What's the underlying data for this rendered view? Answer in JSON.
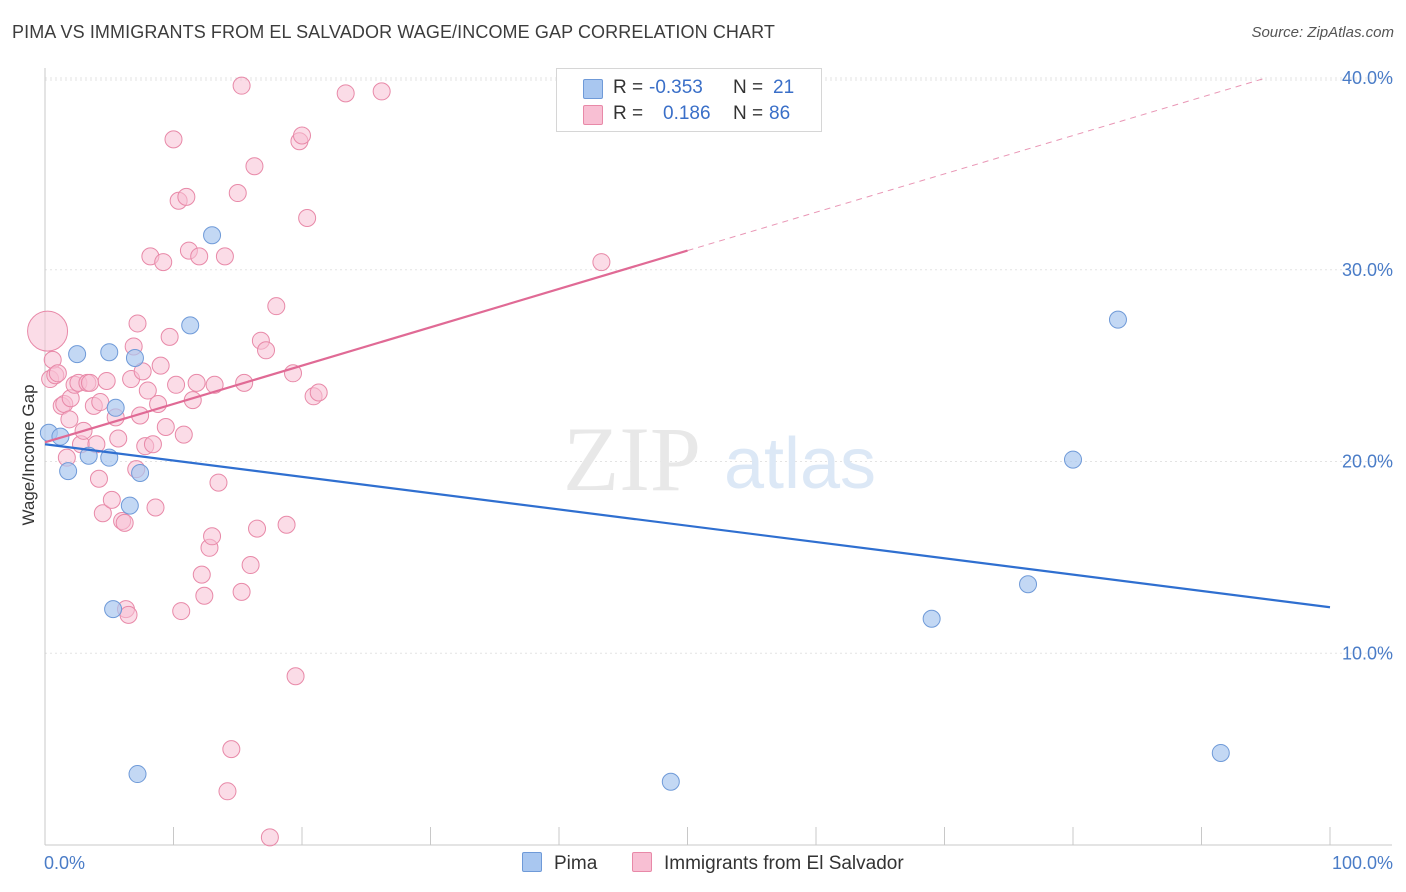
{
  "header": {
    "title": "PIMA VS IMMIGRANTS FROM EL SALVADOR WAGE/INCOME GAP CORRELATION CHART",
    "source": "Source: ZipAtlas.com"
  },
  "legend": {
    "rows": [
      {
        "r_label": "R =",
        "r_value": "-0.353",
        "n_label": "N =",
        "n_value": "21",
        "color": "#a9c7f0",
        "stroke": "#6f9ad8"
      },
      {
        "r_label": "R =",
        "r_value": "0.186",
        "n_label": "N =",
        "n_value": "86",
        "color": "#f8bfd3",
        "stroke": "#e889a8"
      }
    ]
  },
  "watermark": {
    "zip": "ZIP",
    "atlas": "atlas"
  },
  "chart_data": {
    "type": "scatter",
    "title": "PIMA VS IMMIGRANTS FROM EL SALVADOR WAGE/INCOME GAP CORRELATION CHART",
    "xlabel": "",
    "ylabel": "Wage/Income Gap",
    "xlim": [
      0,
      100
    ],
    "ylim": [
      0,
      40
    ],
    "x_tick_labels": [
      "0.0%",
      "100.0%"
    ],
    "y_ticks": [
      10,
      20,
      30,
      40
    ],
    "y_tick_labels": [
      "10.0%",
      "20.0%",
      "30.0%",
      "40.0%"
    ],
    "grid": true,
    "legend_position": "top-center",
    "colors": {
      "pima": "#6f9ad8",
      "pima_fill": "#a9c7f0",
      "pima_line": "#2f6fd0",
      "salv": "#e889a8",
      "salv_fill": "#f8bfd3",
      "salv_line": "#e06a95"
    },
    "series": [
      {
        "name": "Pima",
        "points": [
          [
            0.3,
            21.5
          ],
          [
            1.2,
            21.3
          ],
          [
            1.8,
            19.5
          ],
          [
            2.5,
            25.6
          ],
          [
            3.4,
            20.3
          ],
          [
            5.0,
            25.7
          ],
          [
            5.5,
            22.8
          ],
          [
            5.3,
            12.3
          ],
          [
            5.0,
            20.2
          ],
          [
            7.0,
            25.4
          ],
          [
            7.4,
            19.4
          ],
          [
            6.6,
            17.7
          ],
          [
            7.2,
            3.7
          ],
          [
            11.3,
            27.1
          ],
          [
            13.0,
            31.8
          ],
          [
            48.7,
            3.3
          ],
          [
            69.0,
            11.8
          ],
          [
            76.5,
            13.6
          ],
          [
            80.0,
            20.1
          ],
          [
            83.5,
            27.4
          ],
          [
            91.5,
            4.8
          ]
        ],
        "trend": {
          "x": [
            0,
            100
          ],
          "y": [
            20.9,
            12.4
          ]
        }
      },
      {
        "name": "Immigrants from El Salvador",
        "points": [
          [
            0.2,
            26.8
          ],
          [
            0.4,
            24.3
          ],
          [
            0.6,
            25.3
          ],
          [
            0.8,
            24.5
          ],
          [
            1.0,
            24.6
          ],
          [
            1.3,
            22.9
          ],
          [
            1.5,
            23.0
          ],
          [
            1.7,
            20.2
          ],
          [
            1.9,
            22.2
          ],
          [
            2.0,
            23.3
          ],
          [
            2.3,
            24.0
          ],
          [
            2.6,
            24.1
          ],
          [
            2.8,
            20.9
          ],
          [
            3.0,
            21.6
          ],
          [
            3.3,
            24.1
          ],
          [
            3.5,
            24.1
          ],
          [
            3.8,
            22.9
          ],
          [
            4.0,
            20.9
          ],
          [
            4.2,
            19.1
          ],
          [
            4.3,
            23.1
          ],
          [
            4.5,
            17.3
          ],
          [
            4.8,
            24.2
          ],
          [
            5.2,
            18.0
          ],
          [
            5.5,
            22.3
          ],
          [
            5.7,
            21.2
          ],
          [
            6.0,
            16.9
          ],
          [
            6.2,
            16.8
          ],
          [
            6.3,
            12.3
          ],
          [
            6.5,
            12.0
          ],
          [
            6.7,
            24.3
          ],
          [
            6.9,
            26.0
          ],
          [
            7.1,
            19.6
          ],
          [
            7.2,
            27.2
          ],
          [
            7.4,
            22.4
          ],
          [
            7.6,
            24.7
          ],
          [
            7.8,
            20.8
          ],
          [
            8.0,
            23.7
          ],
          [
            8.2,
            30.7
          ],
          [
            8.4,
            20.9
          ],
          [
            8.6,
            17.6
          ],
          [
            8.8,
            23.0
          ],
          [
            9.0,
            25.0
          ],
          [
            9.2,
            30.4
          ],
          [
            9.4,
            21.8
          ],
          [
            9.7,
            26.5
          ],
          [
            10.0,
            36.8
          ],
          [
            10.2,
            24.0
          ],
          [
            10.4,
            33.6
          ],
          [
            10.6,
            12.2
          ],
          [
            10.8,
            21.4
          ],
          [
            11.0,
            33.8
          ],
          [
            11.2,
            31.0
          ],
          [
            11.5,
            23.2
          ],
          [
            11.8,
            24.1
          ],
          [
            12.0,
            30.7
          ],
          [
            12.2,
            14.1
          ],
          [
            12.4,
            13.0
          ],
          [
            12.8,
            15.5
          ],
          [
            13.0,
            16.1
          ],
          [
            13.2,
            24.0
          ],
          [
            13.5,
            18.9
          ],
          [
            14.0,
            30.7
          ],
          [
            14.5,
            5.0
          ],
          [
            14.2,
            2.8
          ],
          [
            15.0,
            34.0
          ],
          [
            15.3,
            13.2
          ],
          [
            15.5,
            24.1
          ],
          [
            16.0,
            14.6
          ],
          [
            16.3,
            35.4
          ],
          [
            16.5,
            16.5
          ],
          [
            16.8,
            26.3
          ],
          [
            17.2,
            25.8
          ],
          [
            17.5,
            0.4
          ],
          [
            18.0,
            28.1
          ],
          [
            18.8,
            16.7
          ],
          [
            19.3,
            24.6
          ],
          [
            19.5,
            8.8
          ],
          [
            19.8,
            36.7
          ],
          [
            20.0,
            37.0
          ],
          [
            20.4,
            32.7
          ],
          [
            20.9,
            23.4
          ],
          [
            21.3,
            23.6
          ],
          [
            23.4,
            39.2
          ],
          [
            26.2,
            39.3
          ],
          [
            15.3,
            39.6
          ],
          [
            43.3,
            30.4
          ]
        ],
        "trend": {
          "x": [
            0,
            50
          ],
          "y": [
            21.0,
            31.0
          ]
        },
        "trend_extension": {
          "x": [
            50,
            95
          ],
          "y": [
            31.0,
            40.0
          ]
        }
      }
    ]
  }
}
